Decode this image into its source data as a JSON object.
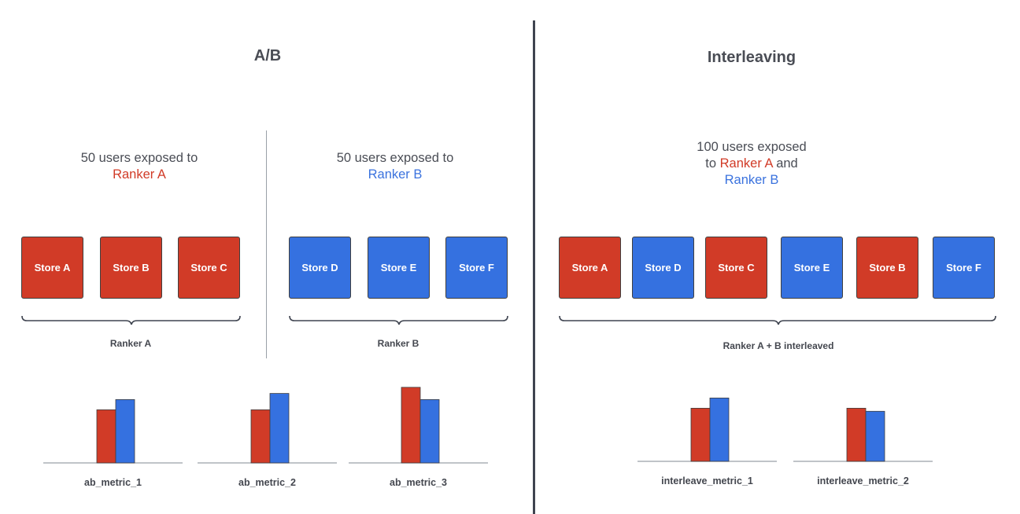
{
  "sections": {
    "ab": {
      "title": "A/B"
    },
    "interleaving": {
      "title": "Interleaving"
    }
  },
  "ab_groups": [
    {
      "desc_line1": "50 users exposed to",
      "ranker": "Ranker A",
      "stores": [
        "Store A",
        "Store B",
        "Store C"
      ],
      "group_label": "Ranker A"
    },
    {
      "desc_line1": "50 users exposed to",
      "ranker": "Ranker B",
      "stores": [
        "Store D",
        "Store E",
        "Store F"
      ],
      "group_label": "Ranker B"
    }
  ],
  "interleaved": {
    "desc_line1": "100 users exposed",
    "desc_to": "to",
    "ranker_a": "Ranker A",
    "desc_and": "and",
    "ranker_b": "Ranker B",
    "stores": [
      "Store A",
      "Store D",
      "Store C",
      "Store E",
      "Store B",
      "Store F"
    ],
    "store_colors": [
      "red",
      "blue",
      "red",
      "blue",
      "red",
      "blue"
    ],
    "group_label": "Ranker A + B interleaved"
  },
  "colors": {
    "ranker_a": "#d13b27",
    "ranker_b": "#3571e0",
    "text": "#4a4d55"
  },
  "metrics": [
    {
      "name": "ab_metric_1",
      "ranker_a": 52,
      "ranker_b": 62
    },
    {
      "name": "ab_metric_2",
      "ranker_a": 52,
      "ranker_b": 68
    },
    {
      "name": "ab_metric_3",
      "ranker_a": 74,
      "ranker_b": 62
    },
    {
      "name": "interleave_metric_1",
      "ranker_a": 52,
      "ranker_b": 62
    },
    {
      "name": "interleave_metric_2",
      "ranker_a": 52,
      "ranker_b": 49
    }
  ]
}
